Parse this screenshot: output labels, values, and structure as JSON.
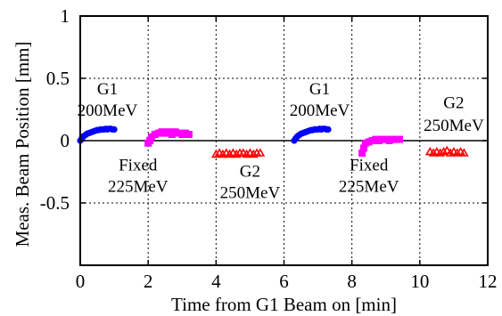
{
  "chart_data": {
    "type": "scatter",
    "title": "",
    "xlabel": "Time from G1 Beam on  [min]",
    "ylabel": "Meas. Beam Position  [mm]",
    "xlim": [
      0,
      12
    ],
    "ylim": [
      -1,
      1
    ],
    "x_ticks": [
      0,
      2,
      4,
      6,
      8,
      10,
      12
    ],
    "x_tick_labels": [
      "0",
      "2",
      "4",
      "6",
      "8",
      "10",
      "12"
    ],
    "y_ticks": [
      -0.5,
      0,
      0.5,
      1
    ],
    "y_tick_labels": [
      "-0.5",
      "0",
      "0.5",
      "1"
    ],
    "grid": "dashed",
    "zero_line": true,
    "legend": "none",
    "series": [
      {
        "color": "#0000ff",
        "marker": "circle",
        "x": [
          0,
          0.05,
          0.1,
          0.15,
          0.2,
          0.25,
          0.3,
          0.35,
          0.4,
          0.45,
          0.5,
          0.55,
          0.6,
          0.65,
          0.7,
          0.75,
          0.8,
          0.85,
          0.9,
          0.95,
          1.0
        ],
        "y": [
          0.0,
          0.02,
          0.035,
          0.045,
          0.055,
          0.06,
          0.065,
          0.07,
          0.075,
          0.08,
          0.085,
          0.085,
          0.09,
          0.09,
          0.09,
          0.095,
          0.09,
          0.095,
          0.095,
          0.09,
          0.09
        ]
      },
      {
        "color": "#ff00ff",
        "marker": "square",
        "x": [
          2.0,
          2.05,
          2.1,
          2.2,
          2.3,
          2.4,
          2.5,
          2.6,
          2.7,
          2.8,
          2.9,
          3.0,
          3.1,
          3.2
        ],
        "y": [
          -0.02,
          0.0,
          0.03,
          0.05,
          0.06,
          0.07,
          0.06,
          0.07,
          0.05,
          0.07,
          0.06,
          0.05,
          0.06,
          0.05
        ]
      },
      {
        "color": "#ff0000",
        "marker": "triangle",
        "x": [
          4.0,
          4.1,
          4.2,
          4.3,
          4.4,
          4.5,
          4.6,
          4.7,
          4.8,
          4.9,
          5.0,
          5.1,
          5.2,
          5.3
        ],
        "y": [
          -0.11,
          -0.1,
          -0.11,
          -0.1,
          -0.11,
          -0.1,
          -0.11,
          -0.1,
          -0.1,
          -0.11,
          -0.1,
          -0.11,
          -0.1,
          -0.1
        ]
      },
      {
        "color": "#0000ff",
        "marker": "circle",
        "x": [
          6.3,
          6.35,
          6.4,
          6.45,
          6.5,
          6.55,
          6.6,
          6.65,
          6.7,
          6.75,
          6.8,
          6.85,
          6.9,
          6.95,
          7.0,
          7.05,
          7.1,
          7.15,
          7.2,
          7.25,
          7.3
        ],
        "y": [
          0.0,
          0.02,
          0.035,
          0.045,
          0.055,
          0.06,
          0.065,
          0.07,
          0.075,
          0.08,
          0.085,
          0.085,
          0.09,
          0.09,
          0.09,
          0.095,
          0.09,
          0.095,
          0.095,
          0.09,
          0.09
        ]
      },
      {
        "color": "#ff00ff",
        "marker": "square",
        "x": [
          8.3,
          8.35,
          8.4,
          8.5,
          8.6,
          8.7,
          8.8,
          8.9,
          9.0,
          9.1,
          9.2,
          9.3,
          9.4
        ],
        "y": [
          -0.1,
          -0.06,
          -0.02,
          -0.01,
          0.0,
          0.01,
          0.0,
          0.01,
          0.01,
          0.0,
          0.01,
          0.01,
          0.01
        ]
      },
      {
        "color": "#ff0000",
        "marker": "triangle",
        "x": [
          10.3,
          10.4,
          10.5,
          10.6,
          10.7,
          10.8,
          10.9,
          11.0,
          11.1,
          11.2,
          11.3
        ],
        "y": [
          -0.09,
          -0.1,
          -0.09,
          -0.1,
          -0.09,
          -0.08,
          -0.1,
          -0.09,
          -0.1,
          -0.09,
          -0.1
        ]
      }
    ],
    "annotations": [
      {
        "text": "G1",
        "x": 0.8,
        "y": 0.37
      },
      {
        "text": "200MeV",
        "x": 0.8,
        "y": 0.2
      },
      {
        "text": "Fixed",
        "x": 1.7,
        "y": -0.24
      },
      {
        "text": "225MeV",
        "x": 1.7,
        "y": -0.41
      },
      {
        "text": "G2",
        "x": 5.0,
        "y": -0.29
      },
      {
        "text": "250MeV",
        "x": 5.0,
        "y": -0.46
      },
      {
        "text": "G1",
        "x": 7.05,
        "y": 0.37
      },
      {
        "text": "200MeV",
        "x": 7.05,
        "y": 0.2
      },
      {
        "text": "Fixed",
        "x": 8.5,
        "y": -0.24
      },
      {
        "text": "225MeV",
        "x": 8.5,
        "y": -0.41
      },
      {
        "text": "G2",
        "x": 11.0,
        "y": 0.26
      },
      {
        "text": "250MeV",
        "x": 11.0,
        "y": 0.08
      }
    ]
  }
}
